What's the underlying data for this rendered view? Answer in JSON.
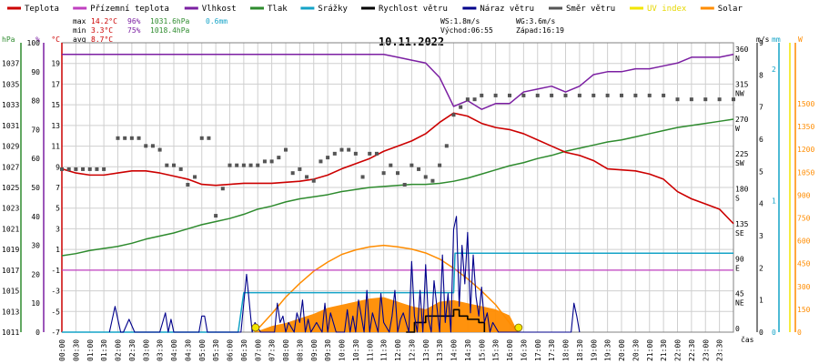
{
  "legend": [
    {
      "label": "Teplota",
      "color": "#cc0000"
    },
    {
      "label": "Přízemní teplota",
      "color": "#c040c0"
    },
    {
      "label": "Vlhkost",
      "color": "#7b1fa2"
    },
    {
      "label": "Tlak",
      "color": "#2e8b2e"
    },
    {
      "label": "Srážky",
      "color": "#14a3c7"
    },
    {
      "label": "Rychlost větru",
      "color": "#000000"
    },
    {
      "label": "Náraz větru",
      "color": "#00008b"
    },
    {
      "label": "Směr větru",
      "color": "#555555"
    },
    {
      "label": "UV index",
      "color": "#f2e600"
    },
    {
      "label": "Solar",
      "color": "#ff8c00"
    }
  ],
  "stats": {
    "max": {
      "label": "max",
      "temp": "14.2°C",
      "hum": "96%",
      "press": "1031.6hPa",
      "rain": "0.6mm"
    },
    "min": {
      "label": "min",
      "temp": "3.3°C",
      "hum": "75%",
      "press": "1018.4hPa"
    },
    "avg": {
      "label": "avg",
      "temp": "8.7°C"
    }
  },
  "wind_info": {
    "ws": "WS:1.8m/s",
    "wg": "WG:3.6m/s",
    "sunrise": "Východ:06:55",
    "sunset": "Západ:16:19"
  },
  "colors": {
    "grid": "#cfcfcf",
    "frame": "#808080",
    "accent_yellow": "#f2e600",
    "accent_orange": "#ff8c00"
  },
  "chart_data": {
    "type": "line",
    "title": "10.11.2022",
    "x_unit": "čas",
    "x_ticks": [
      "00:00",
      "00:30",
      "01:00",
      "01:30",
      "02:00",
      "02:30",
      "03:00",
      "03:30",
      "04:00",
      "04:30",
      "05:00",
      "05:30",
      "06:00",
      "06:30",
      "07:00",
      "07:30",
      "08:00",
      "08:30",
      "09:00",
      "09:30",
      "10:00",
      "10:30",
      "11:00",
      "11:30",
      "12:00",
      "12:30",
      "13:00",
      "13:30",
      "14:00",
      "14:30",
      "15:00",
      "15:30",
      "16:00",
      "16:30",
      "17:00",
      "17:30",
      "18:00",
      "18:30",
      "19:00",
      "19:30",
      "20:00",
      "20:30",
      "21:00",
      "21:30",
      "22:00",
      "22:30",
      "23:00",
      "23:30"
    ],
    "xlim": [
      0,
      24
    ],
    "axes": {
      "pressure": {
        "unit": "hPa",
        "range": [
          1011,
          1039
        ],
        "ticks": [
          "1037",
          "1035",
          "1033",
          "1031",
          "1029",
          "1027",
          "1025",
          "1023",
          "1021",
          "1019",
          "1017",
          "1015",
          "1013",
          "1011"
        ],
        "color": "#2e8b2e"
      },
      "humidity": {
        "unit": "%",
        "range": [
          0,
          100
        ],
        "ticks": [
          "100",
          "90",
          "80",
          "70",
          "60",
          "50",
          "40",
          "30",
          "20",
          "10",
          "0"
        ],
        "color": "#7b1fa2"
      },
      "temperature": {
        "unit": "°C",
        "range": [
          -7,
          21
        ],
        "ticks": [
          "19",
          "17",
          "15",
          "13",
          "11",
          "9",
          "7",
          "5",
          "3",
          "1",
          "-1",
          "-3",
          "-5",
          "-7"
        ],
        "color": "#cc0000"
      },
      "wind_dir": {
        "ticks": [
          "360 N",
          "315 NW",
          "270 W",
          "225 SW",
          "180 S",
          "135 SE",
          "90 E",
          "45 NE",
          "0"
        ],
        "color": "#555555"
      },
      "wind_speed": {
        "unit": "m/s",
        "range": [
          0,
          9
        ],
        "ticks": [
          "9",
          "8",
          "7",
          "6",
          "5",
          "4",
          "3",
          "2",
          "1",
          "0"
        ],
        "color": "#000000"
      },
      "rain": {
        "unit": "mm",
        "range": [
          0,
          2.2
        ],
        "ticks": [
          "2",
          "1",
          "0"
        ],
        "color": "#14a3c7"
      },
      "solar": {
        "unit": "W",
        "range": [
          0,
          1900
        ],
        "ticks": [
          "1500",
          "1350",
          "1200",
          "1050",
          "900",
          "750",
          "600",
          "450",
          "300",
          "150",
          "0"
        ],
        "color": "#ff8c00"
      }
    },
    "series": [
      {
        "name": "Teplota",
        "axis": "temperature",
        "x": [
          0,
          0.5,
          1,
          1.5,
          2,
          2.5,
          3,
          3.5,
          4,
          4.5,
          5,
          5.5,
          6,
          6.5,
          7,
          7.5,
          8,
          8.5,
          9,
          9.5,
          10,
          10.5,
          11,
          11.5,
          12,
          12.5,
          13,
          13.5,
          14,
          14.5,
          15,
          15.5,
          16,
          16.5,
          17,
          17.5,
          18,
          18.5,
          19,
          19.5,
          20,
          20.5,
          21,
          21.5,
          22,
          22.5,
          23,
          23.5,
          24
        ],
        "values": [
          8.8,
          8.4,
          8.2,
          8.2,
          8.4,
          8.6,
          8.6,
          8.4,
          8.1,
          7.8,
          7.3,
          7.2,
          7.3,
          7.4,
          7.4,
          7.4,
          7.5,
          7.6,
          7.8,
          8.2,
          8.8,
          9.3,
          9.8,
          10.5,
          11.0,
          11.5,
          12.2,
          13.3,
          14.2,
          13.9,
          13.2,
          12.8,
          12.6,
          12.2,
          11.6,
          11.0,
          10.4,
          10.1,
          9.6,
          8.8,
          8.7,
          8.6,
          8.3,
          7.8,
          6.6,
          5.9,
          5.4,
          4.9,
          3.5
        ]
      },
      {
        "name": "Vlhkost",
        "axis": "humidity",
        "x": [
          0,
          0.5,
          1,
          1.5,
          2,
          2.5,
          3,
          3.5,
          4,
          4.5,
          5,
          5.5,
          6,
          6.5,
          7,
          7.5,
          8,
          8.5,
          9,
          9.5,
          10,
          10.5,
          11,
          11.5,
          12,
          12.5,
          13,
          13.5,
          14,
          14.5,
          15,
          15.5,
          16,
          16.5,
          17,
          17.5,
          18,
          18.5,
          19,
          19.5,
          20,
          20.5,
          21,
          21.5,
          22,
          22.5,
          23,
          23.5,
          24
        ],
        "values": [
          96,
          96,
          96,
          96,
          96,
          96,
          96,
          96,
          96,
          96,
          96,
          96,
          96,
          96,
          96,
          96,
          96,
          96,
          96,
          96,
          96,
          96,
          96,
          96,
          95,
          94,
          93,
          88,
          78,
          80,
          77,
          79,
          79,
          83,
          84,
          85,
          83,
          85,
          89,
          90,
          90,
          91,
          91,
          92,
          93,
          95,
          95,
          95,
          96
        ]
      },
      {
        "name": "Tlak",
        "axis": "pressure",
        "x": [
          0,
          0.5,
          1,
          1.5,
          2,
          2.5,
          3,
          3.5,
          4,
          4.5,
          5,
          5.5,
          6,
          6.5,
          7,
          7.5,
          8,
          8.5,
          9,
          9.5,
          10,
          10.5,
          11,
          11.5,
          12,
          12.5,
          13,
          13.5,
          14,
          14.5,
          15,
          15.5,
          16,
          16.5,
          17,
          17.5,
          18,
          18.5,
          19,
          19.5,
          20,
          20.5,
          21,
          21.5,
          22,
          22.5,
          23,
          23.5,
          24
        ],
        "values": [
          1018.4,
          1018.6,
          1018.9,
          1019.1,
          1019.3,
          1019.6,
          1020.0,
          1020.3,
          1020.6,
          1021.0,
          1021.4,
          1021.7,
          1022.0,
          1022.4,
          1022.9,
          1023.2,
          1023.6,
          1023.9,
          1024.1,
          1024.3,
          1024.6,
          1024.8,
          1025.0,
          1025.1,
          1025.2,
          1025.3,
          1025.3,
          1025.4,
          1025.6,
          1025.9,
          1026.3,
          1026.7,
          1027.1,
          1027.4,
          1027.8,
          1028.1,
          1028.5,
          1028.8,
          1029.1,
          1029.4,
          1029.6,
          1029.9,
          1030.2,
          1030.5,
          1030.8,
          1031.0,
          1031.2,
          1031.4,
          1031.6
        ]
      },
      {
        "name": "Přízemní teplota",
        "axis": "temperature",
        "x": [
          0,
          24
        ],
        "values": [
          -1,
          -1
        ]
      },
      {
        "name": "Srážky",
        "axis": "rain",
        "x": [
          0,
          6.3,
          6.5,
          14.0,
          14.05,
          24
        ],
        "values": [
          0,
          0,
          0.3,
          0.3,
          0.6,
          0.6
        ]
      },
      {
        "name": "Náraz větru",
        "axis": "wind_speed",
        "x": [
          1.7,
          1.9,
          2.1,
          2.2,
          2.4,
          2.6,
          3.5,
          3.6,
          3.7,
          3.8,
          3.9,
          4.0,
          4.9,
          5.0,
          5.1,
          5.2,
          5.3,
          5.5,
          6.4,
          6.6,
          6.7,
          6.8,
          6.9,
          7.1,
          7.6,
          7.7,
          7.8,
          7.9,
          8.0,
          8.1,
          8.3,
          8.4,
          8.5,
          8.6,
          8.7,
          8.8,
          8.9,
          9.1,
          9.3,
          9.4,
          9.5,
          9.6,
          9.7,
          9.8,
          10.1,
          10.2,
          10.3,
          10.4,
          10.5,
          10.6,
          10.8,
          10.9,
          11.0,
          11.1,
          11.3,
          11.4,
          11.5,
          11.7,
          11.8,
          11.9,
          12.0,
          12.1,
          12.2,
          12.4,
          12.5,
          12.6,
          12.7,
          12.8,
          12.9,
          13.0,
          13.1,
          13.2,
          13.3,
          13.4,
          13.5,
          13.6,
          13.7,
          13.8,
          13.9,
          14.0,
          14.1,
          14.2,
          14.3,
          14.4,
          14.5,
          14.6,
          14.7,
          14.8,
          14.9,
          15.0,
          15.1,
          15.2,
          15.3,
          15.4,
          15.6,
          15.8,
          18.2,
          18.3,
          18.4,
          18.5
        ],
        "values": [
          0,
          0.8,
          0,
          0,
          0.4,
          0,
          0,
          0.3,
          0.6,
          0,
          0.4,
          0,
          0,
          0.5,
          0.5,
          0,
          0,
          0,
          0,
          1.8,
          0.9,
          0,
          0.3,
          0,
          0,
          0.9,
          0.3,
          0.5,
          0,
          0.3,
          0,
          0.6,
          0.3,
          1.0,
          0,
          0.4,
          0,
          0.3,
          0,
          0.9,
          0,
          0.6,
          0.3,
          0,
          0,
          0.7,
          0,
          0.5,
          0,
          1.0,
          0,
          1.3,
          0,
          0.6,
          0,
          1.2,
          0.3,
          0,
          0.5,
          1.3,
          0,
          0.4,
          0.6,
          0,
          2.2,
          0.5,
          0,
          1.3,
          0,
          2.1,
          0.4,
          0,
          1.6,
          0.8,
          0,
          2.4,
          0.3,
          1.2,
          0,
          3.2,
          3.6,
          0.8,
          2.7,
          1.5,
          3.1,
          0.6,
          2.4,
          1.1,
          0.5,
          1.4,
          0.3,
          0.6,
          0,
          0.3,
          0,
          0,
          0,
          0.9,
          0.5,
          0
        ]
      },
      {
        "name": "Rychlost větru",
        "axis": "wind_speed",
        "x": [
          12.3,
          12.6,
          13.0,
          13.4,
          13.8,
          14.0,
          14.2,
          14.5,
          14.9,
          15.1
        ],
        "values": [
          0,
          0.3,
          0.5,
          0.5,
          0.5,
          0.7,
          0.5,
          0.4,
          0.3,
          0
        ]
      },
      {
        "name": "Směr větru",
        "axis": "wind_dir",
        "type": "scatter",
        "x": [
          0,
          0.25,
          0.5,
          0.75,
          1,
          1.25,
          1.5,
          2.0,
          2.25,
          2.5,
          2.75,
          3.0,
          3.25,
          3.5,
          3.75,
          4.0,
          4.25,
          4.5,
          4.75,
          5.0,
          5.25,
          5.5,
          5.75,
          6.0,
          6.25,
          6.5,
          6.75,
          7.0,
          7.25,
          7.5,
          7.75,
          8.0,
          8.25,
          8.5,
          8.75,
          9.0,
          9.25,
          9.5,
          9.75,
          10.0,
          10.25,
          10.5,
          10.75,
          11.0,
          11.25,
          11.5,
          11.75,
          12.0,
          12.25,
          12.5,
          12.75,
          13.0,
          13.25,
          13.5,
          13.75,
          14.0,
          14.25,
          14.5,
          14.75,
          15.0,
          15.5,
          16.0,
          16.5,
          17.0,
          17.5,
          18.0,
          18.5,
          19.0,
          19.5,
          20.0,
          20.5,
          21.0,
          21.5,
          22.0,
          22.5,
          23.0,
          23.5,
          24.0
        ],
        "values": [
          210,
          210,
          210,
          210,
          210,
          210,
          210,
          250,
          250,
          250,
          250,
          240,
          240,
          235,
          215,
          215,
          210,
          190,
          200,
          250,
          250,
          150,
          185,
          215,
          215,
          215,
          215,
          215,
          220,
          220,
          225,
          235,
          205,
          210,
          200,
          195,
          220,
          225,
          230,
          235,
          235,
          230,
          200,
          230,
          230,
          205,
          215,
          205,
          190,
          215,
          210,
          200,
          195,
          215,
          240,
          280,
          290,
          300,
          300,
          305,
          305,
          305,
          305,
          305,
          305,
          305,
          305,
          305,
          305,
          305,
          305,
          305,
          305,
          300,
          300,
          300,
          300,
          300
        ]
      },
      {
        "name": "Solar",
        "axis": "solar",
        "type": "area",
        "x": [
          6.9,
          7.5,
          8.0,
          8.5,
          9.0,
          9.5,
          10.0,
          10.5,
          11.0,
          11.5,
          12.0,
          12.5,
          13.0,
          13.5,
          14.0,
          14.5,
          15.0,
          15.5,
          16.0,
          16.3
        ],
        "values": [
          0,
          40,
          60,
          90,
          120,
          160,
          180,
          200,
          220,
          230,
          200,
          170,
          150,
          200,
          210,
          190,
          170,
          150,
          110,
          0
        ]
      },
      {
        "name": "Solar theoretical",
        "axis": "solar",
        "type": "line",
        "x": [
          6.9,
          7.5,
          8.0,
          8.5,
          9.0,
          9.5,
          10.0,
          10.5,
          11.0,
          11.5,
          12.0,
          12.5,
          13.0,
          13.5,
          14.0,
          14.5,
          15.0,
          15.5,
          16.0,
          16.3
        ],
        "values": [
          0,
          120,
          230,
          320,
          400,
          460,
          510,
          540,
          560,
          570,
          560,
          545,
          520,
          480,
          420,
          350,
          270,
          180,
          60,
          0
        ]
      }
    ],
    "sun_markers": [
      6.92,
      16.32
    ]
  }
}
